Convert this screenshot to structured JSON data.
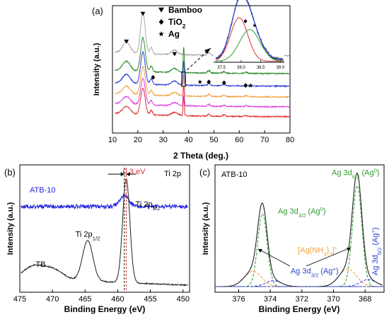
{
  "chart_data": [
    {
      "panel": "(a)",
      "type": "line",
      "xlabel": "2 Theta (deg.)",
      "ylabel": "Intensity (a.u.)",
      "xlim": [
        10,
        80
      ],
      "xticks": [
        10,
        20,
        30,
        40,
        50,
        60,
        70,
        80
      ],
      "legend": {
        "placement": "top-center",
        "entries": [
          {
            "marker": "triangle-down",
            "label": "Bamboo"
          },
          {
            "marker": "diamond",
            "label": "TiO",
            "sub": "2"
          },
          {
            "marker": "star",
            "label": "Ag"
          }
        ]
      },
      "series": [
        {
          "color": "#a9a9a9",
          "base": 0.86,
          "amp": 1.0
        },
        {
          "color": "#2e8b2e",
          "base": 0.66,
          "amp": 0.9
        },
        {
          "color": "#3040d0",
          "base": 0.52,
          "amp": 0.85
        },
        {
          "color": "#f0a040",
          "base": 0.4,
          "amp": 0.75
        },
        {
          "color": "#e040e0",
          "base": 0.29,
          "amp": 0.7
        },
        {
          "color": "#e03030",
          "base": 0.18,
          "amp": 0.7
        }
      ],
      "peaks": [
        {
          "x": 15.5,
          "height": 0.12,
          "width": 1.5
        },
        {
          "x": 22.0,
          "height": 0.42,
          "width": 0.9
        },
        {
          "x": 25.3,
          "height": 0.07,
          "width": 0.5
        },
        {
          "x": 34.5,
          "height": 0.05,
          "width": 1.2
        },
        {
          "x": 38.1,
          "height": 0.32,
          "width": 0.22
        },
        {
          "x": 48.0,
          "height": 0.03,
          "width": 0.5
        },
        {
          "x": 54.0,
          "height": 0.02,
          "width": 0.5
        },
        {
          "x": 62.7,
          "height": 0.015,
          "width": 0.5
        }
      ],
      "markers": [
        {
          "symbol": "triangle-down",
          "x": 15.5,
          "y": 1.02
        },
        {
          "symbol": "triangle-down",
          "x": 22.0,
          "y": 1.33
        },
        {
          "symbol": "triangle-down",
          "x": 34.5,
          "y": 0.88
        },
        {
          "symbol": "diamond",
          "x": 26.0,
          "y": 0.62
        },
        {
          "symbol": "diamond",
          "x": 48.0,
          "y": 0.57
        },
        {
          "symbol": "diamond",
          "x": 54.0,
          "y": 0.56
        },
        {
          "symbol": "diamond",
          "x": 62.5,
          "y": 0.53
        },
        {
          "symbol": "star",
          "x": 44.5,
          "y": 0.57
        },
        {
          "symbol": "star",
          "x": 64.5,
          "y": 0.53
        }
      ],
      "inset": {
        "xlim": [
          37.3,
          39.1
        ],
        "xticks": [
          37.5,
          38.0,
          38.5,
          39.0
        ],
        "xtick_labels": [
          "37.5",
          "38.0",
          "38.5",
          "39.0"
        ],
        "ylim": [
          0,
          1.05
        ],
        "components": [
          {
            "color": "#e03030",
            "center": 37.95,
            "height": 0.85,
            "width": 0.22
          },
          {
            "color": "#2e9b2e",
            "center": 38.22,
            "height": 0.62,
            "width": 0.26
          }
        ],
        "envelope_color": "#3040d0",
        "data_color": "#202020"
      }
    },
    {
      "panel": "(b)",
      "type": "line",
      "title": "Ti 2p",
      "xlabel": "Binding Energy (eV)",
      "ylabel": "Intensity (a.u.)",
      "xlim": [
        475,
        449
      ],
      "xticks": [
        475,
        470,
        465,
        460,
        455,
        450
      ],
      "series": [
        {
          "name": "ATB-10",
          "color": "#2020e0",
          "base": 0.74,
          "peaks": [
            {
              "x": 459.0,
              "height": 0.09,
              "width": 0.7
            }
          ]
        },
        {
          "name": "TB",
          "color": "#202020",
          "base": 0.06,
          "peaks": [
            {
              "x": 473.0,
              "height": 0.1,
              "width": 1.5
            },
            {
              "x": 470.0,
              "height": 0.09,
              "width": 1.6
            },
            {
              "x": 464.6,
              "height": 0.35,
              "width": 0.8
            },
            {
              "x": 458.7,
              "height": 0.9,
              "width": 0.55
            }
          ]
        }
      ],
      "annotations": [
        {
          "text": "TB",
          "x": 471.8,
          "y": 0.22
        },
        {
          "text": "Ti 2p",
          "sub": "1/2",
          "x": 464.6,
          "y": 0.48
        },
        {
          "text": "Ti 2p",
          "sub": "3/2",
          "x": 455.4,
          "y": 0.74
        },
        {
          "text": "0.3 eV",
          "x": 457.5,
          "y": 1.02,
          "color": "#e03030"
        }
      ],
      "reference_lines": [
        {
          "x": 459.0,
          "color": "#202020"
        },
        {
          "x": 458.7,
          "color": "#e03030"
        }
      ]
    },
    {
      "panel": "(c)",
      "type": "line",
      "title": "ATB-10",
      "xlabel": "Binding Energy (eV)",
      "ylabel": "Intensity (a.u.)",
      "xlim": [
        377.5,
        366.8
      ],
      "xticks": [
        376,
        374,
        372,
        370,
        368
      ],
      "envelope": {
        "color": "#202020"
      },
      "components": [
        {
          "color": "#2e9b2e",
          "center": 374.5,
          "height": 0.62,
          "width": 0.3
        },
        {
          "color": "#2e9b2e",
          "center": 368.5,
          "height": 0.86,
          "width": 0.3
        },
        {
          "color": "#f0a040",
          "center": 375.1,
          "height": 0.13,
          "width": 0.55
        },
        {
          "color": "#f0a040",
          "center": 369.1,
          "height": 0.15,
          "width": 0.55
        },
        {
          "color": "#3040d0",
          "center": 373.8,
          "height": 0.05,
          "width": 0.5
        },
        {
          "color": "#3040d0",
          "center": 367.8,
          "height": 0.06,
          "width": 0.5
        }
      ],
      "annotations": [
        {
          "text": "Ag 3d",
          "sub": "5/2",
          "tail": " (Ag",
          "sup": "0",
          "close": ")",
          "color": "#2e9b2e",
          "x": 368.6,
          "y": 0.95
        },
        {
          "text": "Ag 3d",
          "sub": "3/2",
          "tail": " (Ag",
          "sup": "0",
          "close": ")",
          "color": "#2e9b2e",
          "x": 372.0,
          "y": 0.62
        },
        {
          "text": "[Ag(NH",
          "sub": "3",
          "tail": ")",
          "sub2": "2",
          "close": "]",
          "sup": "+",
          "color": "#f0a040",
          "x": 371.0,
          "y": 0.29
        },
        {
          "text": "Ag 3d",
          "sub": "3/2",
          "tail": " (Ag",
          "sup": "+",
          "close": ")",
          "color": "#3040d0",
          "x": 371.2,
          "y": 0.11
        },
        {
          "text": "Ag 3d",
          "sub": "5/2",
          "tail": " (Ag",
          "sup": "+",
          "close": ")",
          "color": "#3040d0",
          "x": 367.2,
          "y": 0.3,
          "rotate": -90
        }
      ]
    }
  ]
}
